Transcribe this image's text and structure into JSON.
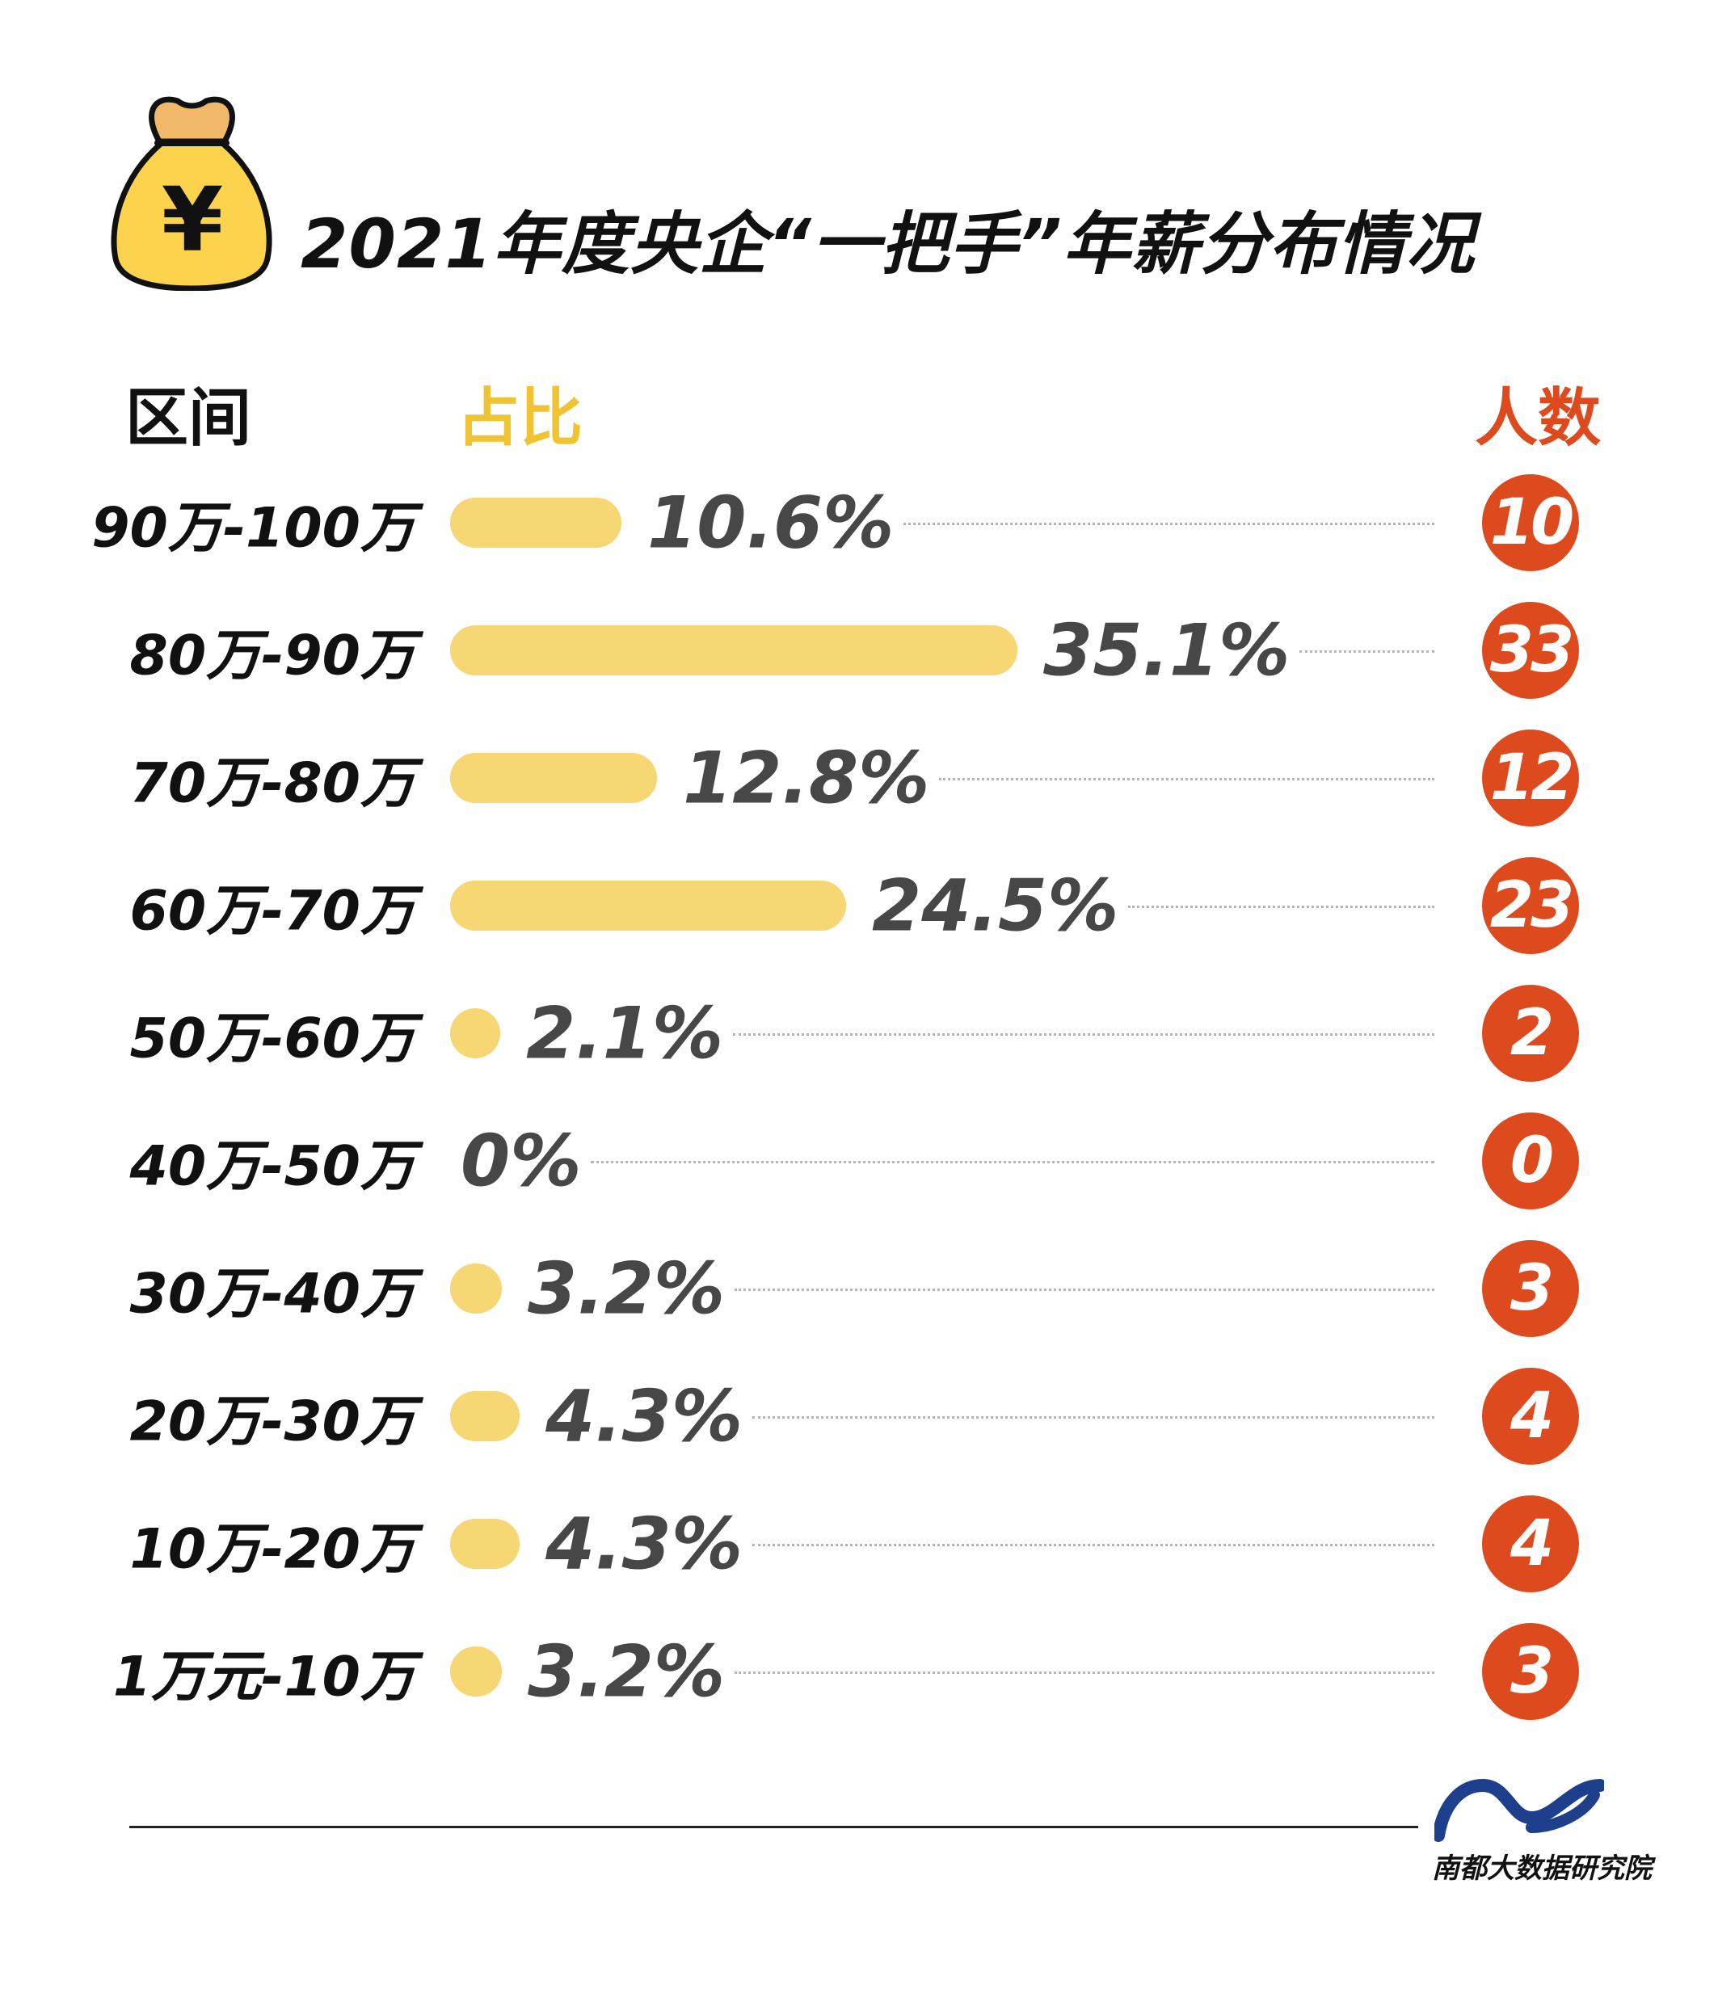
{
  "header": {
    "title": "2021年度央企“一把手”年薪分布情况",
    "icon": "money-bag-icon",
    "icon_glyph": "¥"
  },
  "columns": {
    "range": "区间",
    "share": "占比",
    "count": "人数"
  },
  "colors": {
    "bar": "#f6d774",
    "badge": "#dc4a1e",
    "share_header": "#f0c332",
    "count_header": "#dc4a1e",
    "percent_text": "#474747"
  },
  "chart_data": {
    "type": "bar",
    "orientation": "horizontal",
    "title": "2021年度央企“一把手”年薪分布情况",
    "categories": [
      "90万-100万",
      "80万-90万",
      "70万-80万",
      "60万-70万",
      "50万-60万",
      "40万-50万",
      "30万-40万",
      "20万-30万",
      "10万-20万",
      "1万元-10万"
    ],
    "series": [
      {
        "name": "占比",
        "values": [
          10.6,
          35.1,
          12.8,
          24.5,
          2.1,
          0,
          3.2,
          4.3,
          4.3,
          3.2
        ],
        "labels": [
          "10.6%",
          "35.1%",
          "12.8%",
          "24.5%",
          "2.1%",
          "0%",
          "3.2%",
          "4.3%",
          "4.3%",
          "3.2%"
        ]
      },
      {
        "name": "人数",
        "values": [
          10,
          33,
          12,
          23,
          2,
          0,
          3,
          4,
          4,
          3
        ]
      }
    ]
  },
  "footer": {
    "brand": "南都大数据研究院"
  }
}
